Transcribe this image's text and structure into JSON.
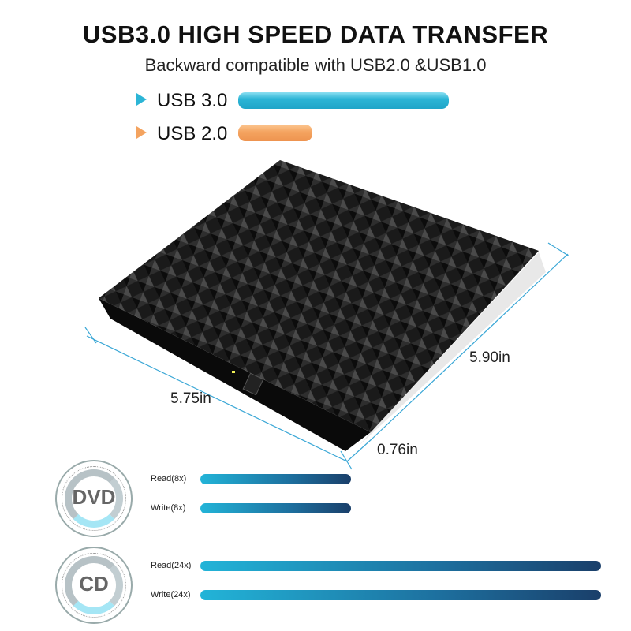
{
  "header": {
    "title": "USB3.0 HIGH SPEED DATA TRANSFER",
    "subtitle": "Backward compatible with USB2.0 &USB1.0"
  },
  "usb_compare": [
    {
      "label": "USB 3.0",
      "color": "#2cb5d6",
      "relative_speed": 1.0
    },
    {
      "label": "USB 2.0",
      "color": "#f4a35f",
      "relative_speed": 0.35
    }
  ],
  "dimensions": {
    "width": "5.75in",
    "depth": "5.90in",
    "height": "0.76in"
  },
  "media": [
    {
      "name": "DVD",
      "speeds": [
        {
          "label": "Read(8x)",
          "relative": 0.37
        },
        {
          "label": "Write(8x)",
          "relative": 0.37
        }
      ]
    },
    {
      "name": "CD",
      "speeds": [
        {
          "label": "Read(24x)",
          "relative": 1.0
        },
        {
          "label": "Write(24x)",
          "relative": 1.0
        }
      ]
    }
  ],
  "colors": {
    "accent": "#2cb5d6",
    "orange": "#f4a35f",
    "dim_line": "#3aa7d6"
  }
}
